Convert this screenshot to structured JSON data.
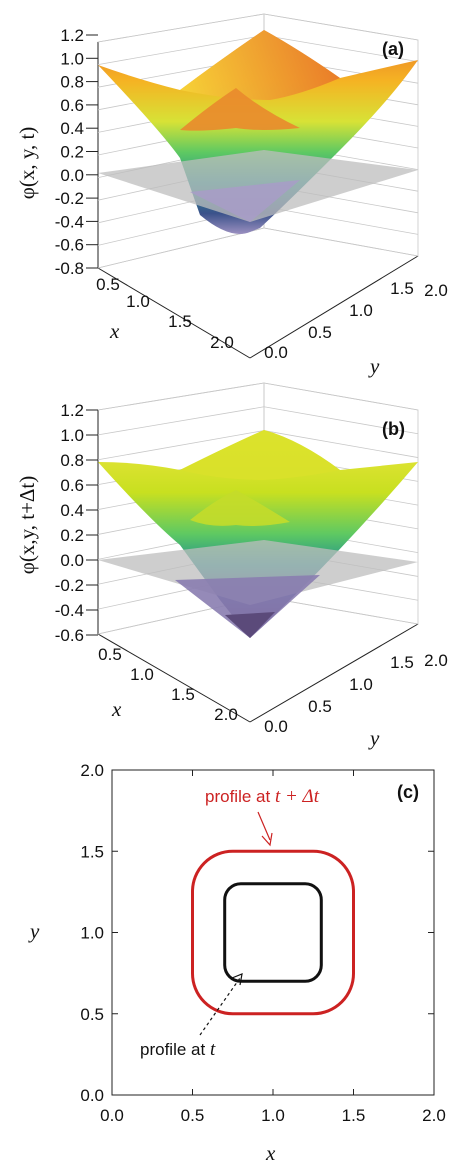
{
  "chart_data": [
    {
      "type": "surface",
      "panel_label": "(a)",
      "zlabel": "φ(x, y, t)",
      "xlabel": "x",
      "ylabel": "y",
      "z_ticks": [
        "1.2",
        "1.0",
        "0.8",
        "0.6",
        "0.4",
        "0.2",
        "0.0",
        "-0.2",
        "-0.4",
        "-0.6",
        "-0.8"
      ],
      "x_ticks": [
        "0.5",
        "1.0",
        "1.5",
        "2.0"
      ],
      "y_ticks": [
        "0.0",
        "0.5",
        "1.0",
        "1.5",
        "2.0"
      ],
      "zlim": [
        -0.8,
        1.2
      ],
      "xlim": [
        0,
        2
      ],
      "ylim": [
        0,
        2
      ],
      "center": [
        1.0,
        1.0
      ],
      "radius": 0.3,
      "zero_plane": 0.0,
      "colormap": [
        "#3b1f5e",
        "#31688e",
        "#21918c",
        "#35b779",
        "#90d743",
        "#f0e442",
        "#f5a623",
        "#e8742a"
      ]
    },
    {
      "type": "surface",
      "panel_label": "(b)",
      "zlabel": "φ(x,y, t+Δt)",
      "xlabel": "x",
      "ylabel": "y",
      "z_ticks": [
        "1.2",
        "1.0",
        "0.8",
        "0.6",
        "0.4",
        "0.2",
        "0.0",
        "-0.2",
        "-0.4",
        "-0.6"
      ],
      "x_ticks": [
        "0.5",
        "1.0",
        "1.5",
        "2.0"
      ],
      "y_ticks": [
        "0.0",
        "0.5",
        "1.0",
        "1.5",
        "2.0"
      ],
      "zlim": [
        -0.6,
        1.2
      ],
      "xlim": [
        0,
        2
      ],
      "ylim": [
        0,
        2
      ],
      "center": [
        1.0,
        1.0
      ],
      "radius": 0.5,
      "zero_plane": 0.0,
      "colormap": [
        "#3b1f5e",
        "#31688e",
        "#21918c",
        "#35b779",
        "#90d743",
        "#f0e442"
      ]
    },
    {
      "type": "contour",
      "panel_label": "(c)",
      "xlabel": "x",
      "ylabel": "y",
      "x_ticks": [
        "0.0",
        "0.5",
        "1.0",
        "1.5",
        "2.0"
      ],
      "y_ticks": [
        "0.0",
        "0.5",
        "1.0",
        "1.5",
        "2.0"
      ],
      "xlim": [
        0,
        2
      ],
      "ylim": [
        0,
        2
      ],
      "series": [
        {
          "name": "profile at t",
          "color": "#111111",
          "x": [
            0.7,
            1.3
          ],
          "y": [
            0.7,
            1.3
          ],
          "corner_radius": 0.1
        },
        {
          "name": "profile at t + Δt",
          "color": "#cc2222",
          "x": [
            0.5,
            1.5
          ],
          "y": [
            0.5,
            1.5
          ],
          "corner_radius": 0.25
        }
      ],
      "annotations": [
        {
          "text_prefix": "profile at ",
          "text_var": "t + Δt",
          "color": "#cc2222",
          "target": [
            1.0,
            1.5
          ]
        },
        {
          "text_prefix": "profile at ",
          "text_var": "t",
          "color": "#111111",
          "target": [
            0.8,
            0.72
          ]
        }
      ]
    }
  ]
}
